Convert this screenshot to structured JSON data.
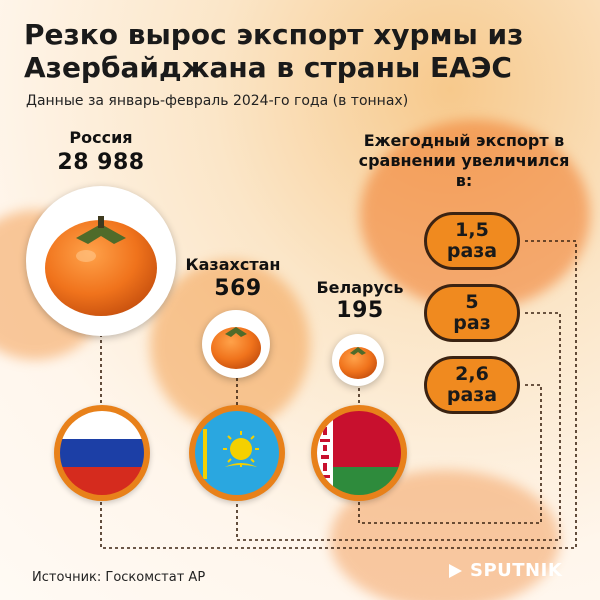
{
  "title": "Резко вырос экспорт хурмы из Азербайджана в страны ЕАЭС",
  "subtitle": "Данные за январь-февраль 2024-го года (в тоннах)",
  "chart_data": {
    "type": "bar",
    "title": "Резко вырос экспорт хурмы из Азербайджана в страны ЕАЭС",
    "subtitle": "Данные за январь-февраль 2024-го года (в тоннах)",
    "categories": [
      "Россия",
      "Казахстан",
      "Беларусь"
    ],
    "values": [
      28988,
      569,
      195
    ],
    "value_labels": [
      "28 988",
      "569",
      "195"
    ],
    "unit": "тонн",
    "growth_title": "Ежегодный экспорт в сравнении увеличился в:",
    "growth": [
      {
        "country": "Россия",
        "factor": 1.5,
        "line1": "1,5",
        "line2": "раза"
      },
      {
        "country": "Казахстан",
        "factor": 5,
        "line1": "5",
        "line2": "раз"
      },
      {
        "country": "Беларусь",
        "factor": 2.6,
        "line1": "2,6",
        "line2": "раза"
      }
    ]
  },
  "source": "Источник: Госкомстат АР",
  "brand": "SPUTNIK",
  "colors": {
    "accent": "#f08a1f",
    "dark": "#3b2312",
    "russia_white": "#ffffff",
    "russia_blue": "#1c3fa6",
    "russia_red": "#d52b1e",
    "kz_blue": "#2aa7e0",
    "kz_gold": "#f4d000",
    "by_red": "#c8102e",
    "by_green": "#2e8b3c"
  }
}
